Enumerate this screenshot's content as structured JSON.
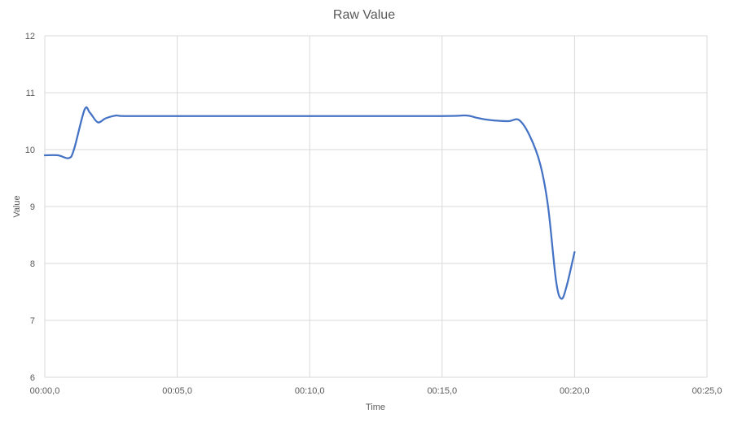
{
  "chart_data": {
    "type": "line",
    "title": "Raw Value",
    "xlabel": "Time",
    "ylabel": "Value",
    "x_unit": "seconds",
    "xlim": [
      0,
      25
    ],
    "ylim": [
      6,
      12
    ],
    "x_ticks": [
      0,
      5,
      10,
      15,
      20,
      25
    ],
    "x_tick_labels": [
      "00:00,0",
      "00:05,0",
      "00:10,0",
      "00:15,0",
      "00:20,0",
      "00:25,0"
    ],
    "y_ticks": [
      6,
      7,
      8,
      9,
      10,
      11,
      12
    ],
    "y_tick_labels": [
      "6",
      "7",
      "8",
      "9",
      "10",
      "11",
      "12"
    ],
    "grid": true,
    "legend": "none",
    "series": [
      {
        "color": "#4472c4",
        "x": [
          0,
          0.5,
          0.9,
          1.1,
          1.5,
          1.7,
          2.0,
          2.3,
          2.7,
          3.0,
          5.0,
          10.0,
          15.0,
          15.9,
          16.3,
          16.8,
          17.5,
          17.9,
          18.3,
          18.7,
          19.0,
          19.3,
          19.5,
          19.7,
          20.0
        ],
        "values": [
          9.9,
          9.9,
          9.85,
          10.0,
          10.7,
          10.65,
          10.48,
          10.55,
          10.6,
          10.59,
          10.59,
          10.59,
          10.59,
          10.6,
          10.56,
          10.52,
          10.5,
          10.52,
          10.25,
          9.75,
          9.0,
          7.7,
          7.38,
          7.6,
          8.2
        ]
      }
    ]
  }
}
